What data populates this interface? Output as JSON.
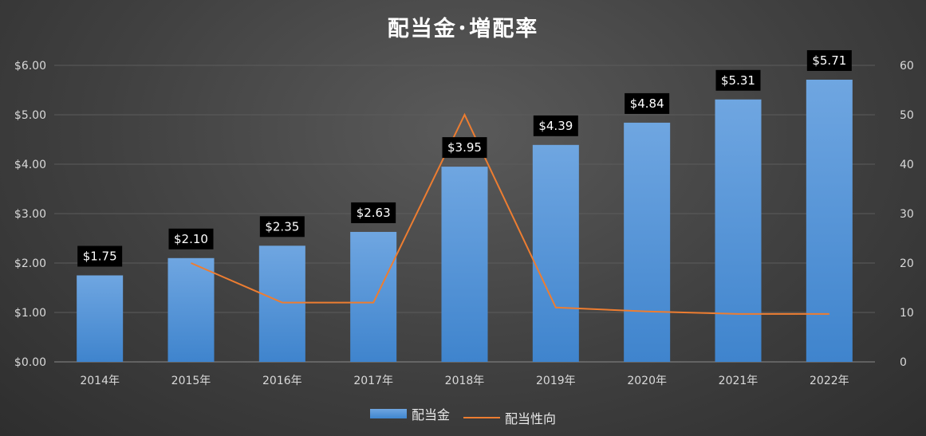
{
  "chart_data": {
    "type": "bar",
    "title": "配当金･増配率",
    "categories": [
      "2014年",
      "2015年",
      "2016年",
      "2017年",
      "2018年",
      "2019年",
      "2020年",
      "2021年",
      "2022年"
    ],
    "series": [
      {
        "name": "配当金",
        "type": "bar",
        "axis": "left",
        "values": [
          1.75,
          2.1,
          2.35,
          2.63,
          3.95,
          4.39,
          4.84,
          5.31,
          5.71
        ],
        "labels": [
          "$1.75",
          "$2.10",
          "$2.35",
          "$2.63",
          "$3.95",
          "$4.39",
          "$4.84",
          "$5.31",
          "$5.71"
        ],
        "color": "#5b9bd5"
      },
      {
        "name": "配当性向",
        "type": "line",
        "axis": "right",
        "values": [
          null,
          20,
          12,
          12,
          50,
          11,
          10.2,
          9.7,
          9.7
        ],
        "color": "#ed7d31"
      }
    ],
    "y_left": {
      "ylim": [
        0,
        6
      ],
      "ticks": [
        "$0.00",
        "$1.00",
        "$2.00",
        "$3.00",
        "$4.00",
        "$5.00",
        "$6.00"
      ]
    },
    "y_right": {
      "ylim": [
        0,
        60
      ],
      "ticks": [
        "0",
        "10",
        "20",
        "30",
        "40",
        "50",
        "60"
      ]
    },
    "grid": true,
    "legend": "bottom"
  }
}
